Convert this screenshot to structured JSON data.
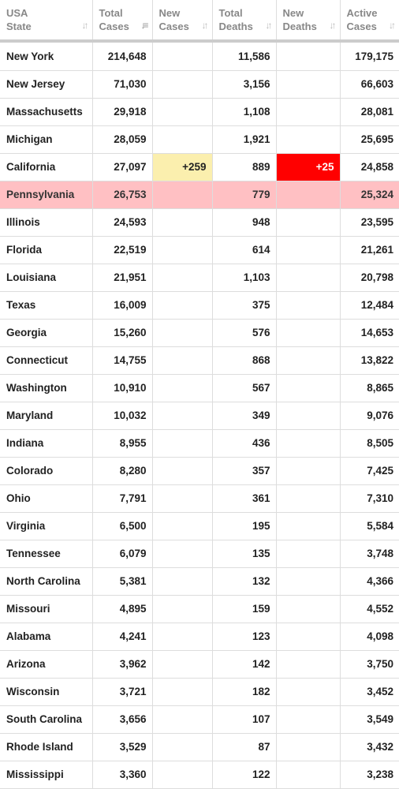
{
  "headers": {
    "state": [
      "USA",
      "State"
    ],
    "total_cases": [
      "Total",
      "Cases"
    ],
    "new_cases": [
      "New",
      "Cases"
    ],
    "total_deaths": [
      "Total",
      "Deaths"
    ],
    "new_deaths": [
      "New",
      "Deaths"
    ],
    "active_cases": [
      "Active",
      "Cases"
    ]
  },
  "sort_icon": "↓↑",
  "sort_icon_active": "↓≡",
  "rows": [
    {
      "state": "New York",
      "total_cases": "214,648",
      "new_cases": "",
      "total_deaths": "11,586",
      "new_deaths": "",
      "active_cases": "179,175"
    },
    {
      "state": "New Jersey",
      "total_cases": "71,030",
      "new_cases": "",
      "total_deaths": "3,156",
      "new_deaths": "",
      "active_cases": "66,603"
    },
    {
      "state": "Massachusetts",
      "total_cases": "29,918",
      "new_cases": "",
      "total_deaths": "1,108",
      "new_deaths": "",
      "active_cases": "28,081"
    },
    {
      "state": "Michigan",
      "total_cases": "28,059",
      "new_cases": "",
      "total_deaths": "1,921",
      "new_deaths": "",
      "active_cases": "25,695"
    },
    {
      "state": "California",
      "total_cases": "27,097",
      "new_cases": "+259",
      "total_deaths": "889",
      "new_deaths": "+25",
      "active_cases": "24,858"
    },
    {
      "state": "Pennsylvania",
      "total_cases": "26,753",
      "new_cases": "",
      "total_deaths": "779",
      "new_deaths": "",
      "active_cases": "25,324",
      "highlight": true
    },
    {
      "state": "Illinois",
      "total_cases": "24,593",
      "new_cases": "",
      "total_deaths": "948",
      "new_deaths": "",
      "active_cases": "23,595"
    },
    {
      "state": "Florida",
      "total_cases": "22,519",
      "new_cases": "",
      "total_deaths": "614",
      "new_deaths": "",
      "active_cases": "21,261"
    },
    {
      "state": "Louisiana",
      "total_cases": "21,951",
      "new_cases": "",
      "total_deaths": "1,103",
      "new_deaths": "",
      "active_cases": "20,798"
    },
    {
      "state": "Texas",
      "total_cases": "16,009",
      "new_cases": "",
      "total_deaths": "375",
      "new_deaths": "",
      "active_cases": "12,484"
    },
    {
      "state": "Georgia",
      "total_cases": "15,260",
      "new_cases": "",
      "total_deaths": "576",
      "new_deaths": "",
      "active_cases": "14,653"
    },
    {
      "state": "Connecticut",
      "total_cases": "14,755",
      "new_cases": "",
      "total_deaths": "868",
      "new_deaths": "",
      "active_cases": "13,822"
    },
    {
      "state": "Washington",
      "total_cases": "10,910",
      "new_cases": "",
      "total_deaths": "567",
      "new_deaths": "",
      "active_cases": "8,865"
    },
    {
      "state": "Maryland",
      "total_cases": "10,032",
      "new_cases": "",
      "total_deaths": "349",
      "new_deaths": "",
      "active_cases": "9,076"
    },
    {
      "state": "Indiana",
      "total_cases": "8,955",
      "new_cases": "",
      "total_deaths": "436",
      "new_deaths": "",
      "active_cases": "8,505"
    },
    {
      "state": "Colorado",
      "total_cases": "8,280",
      "new_cases": "",
      "total_deaths": "357",
      "new_deaths": "",
      "active_cases": "7,425"
    },
    {
      "state": "Ohio",
      "total_cases": "7,791",
      "new_cases": "",
      "total_deaths": "361",
      "new_deaths": "",
      "active_cases": "7,310"
    },
    {
      "state": "Virginia",
      "total_cases": "6,500",
      "new_cases": "",
      "total_deaths": "195",
      "new_deaths": "",
      "active_cases": "5,584"
    },
    {
      "state": "Tennessee",
      "total_cases": "6,079",
      "new_cases": "",
      "total_deaths": "135",
      "new_deaths": "",
      "active_cases": "3,748"
    },
    {
      "state": "North Carolina",
      "total_cases": "5,381",
      "new_cases": "",
      "total_deaths": "132",
      "new_deaths": "",
      "active_cases": "4,366"
    },
    {
      "state": "Missouri",
      "total_cases": "4,895",
      "new_cases": "",
      "total_deaths": "159",
      "new_deaths": "",
      "active_cases": "4,552"
    },
    {
      "state": "Alabama",
      "total_cases": "4,241",
      "new_cases": "",
      "total_deaths": "123",
      "new_deaths": "",
      "active_cases": "4,098"
    },
    {
      "state": "Arizona",
      "total_cases": "3,962",
      "new_cases": "",
      "total_deaths": "142",
      "new_deaths": "",
      "active_cases": "3,750"
    },
    {
      "state": "Wisconsin",
      "total_cases": "3,721",
      "new_cases": "",
      "total_deaths": "182",
      "new_deaths": "",
      "active_cases": "3,452"
    },
    {
      "state": "South Carolina",
      "total_cases": "3,656",
      "new_cases": "",
      "total_deaths": "107",
      "new_deaths": "",
      "active_cases": "3,549"
    },
    {
      "state": "Rhode Island",
      "total_cases": "3,529",
      "new_cases": "",
      "total_deaths": "87",
      "new_deaths": "",
      "active_cases": "3,432"
    },
    {
      "state": "Mississippi",
      "total_cases": "3,360",
      "new_cases": "",
      "total_deaths": "122",
      "new_deaths": "",
      "active_cases": "3,238"
    }
  ]
}
